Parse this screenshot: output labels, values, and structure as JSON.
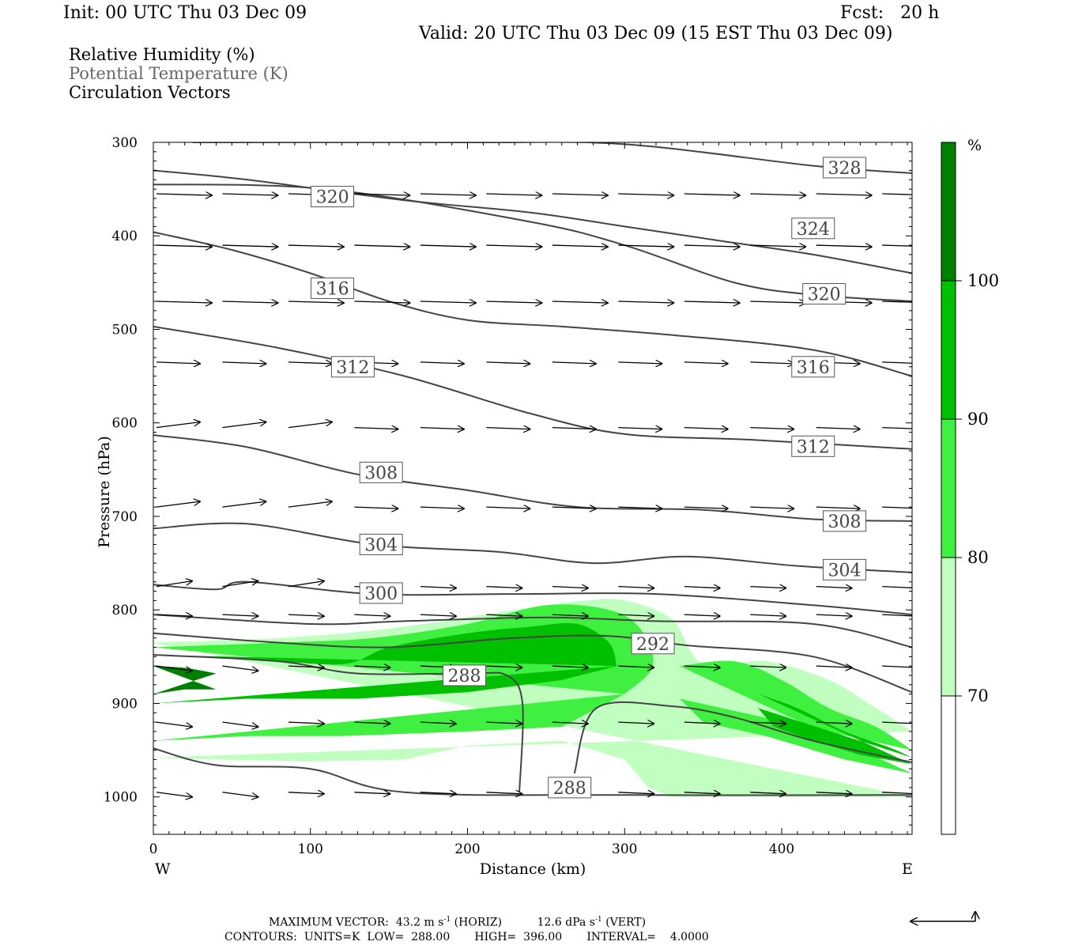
{
  "header": {
    "init": "Init: 00 UTC Thu 03 Dec 09",
    "fcst": "Fcst:   20 h",
    "valid": "Valid: 20 UTC Thu 03 Dec 09 (15 EST Thu 03 Dec 09)"
  },
  "legend": {
    "rh": "Relative Humidity (%)",
    "theta": "Potential Temperature (K)",
    "vectors": "Circulation Vectors"
  },
  "colors": {
    "rh_70_80": "#c0ffc0",
    "rh_80_90": "#40f040",
    "rh_90_100": "#00c000",
    "rh_100": "#008000",
    "contour": "#444444",
    "background": "#ffffff"
  },
  "chart_data": {
    "type": "cross-section",
    "xlabel": "Distance (km)",
    "ylabel": "Pressure (hPa)",
    "xlim": [
      0,
      483
    ],
    "ylim": [
      1040,
      300
    ],
    "x_ticks": [
      0,
      100,
      200,
      300,
      400
    ],
    "y_ticks": [
      300,
      400,
      500,
      600,
      700,
      800,
      900,
      1000
    ],
    "x_end_labels": {
      "west": "W",
      "east": "E"
    },
    "colorbar": {
      "unit": "%",
      "levels": [
        70,
        80,
        90,
        100
      ],
      "colors": [
        "#ffffff",
        "#c0ffc0",
        "#40f040",
        "#00c000",
        "#008000"
      ]
    },
    "theta_contours": [
      {
        "value": 328,
        "points": [
          [
            25,
            300
          ],
          [
            200,
            300
          ],
          [
            300,
            302
          ],
          [
            420,
            325
          ],
          [
            483,
            333
          ]
        ],
        "label": true,
        "label_pos": [
          440,
          327
        ]
      },
      {
        "value": 324,
        "points": [
          [
            0,
            330
          ],
          [
            60,
            340
          ],
          [
            160,
            362
          ],
          [
            240,
            375
          ],
          [
            300,
            390
          ],
          [
            360,
            405
          ],
          [
            420,
            420
          ],
          [
            483,
            440
          ]
        ],
        "label": true,
        "label_pos": [
          420,
          392
        ]
      },
      {
        "value": 320,
        "points": [
          [
            0,
            345
          ],
          [
            110,
            350
          ],
          [
            240,
            385
          ],
          [
            300,
            410
          ],
          [
            370,
            450
          ],
          [
            420,
            463
          ],
          [
            483,
            470
          ]
        ],
        "label": true,
        "label_pos": [
          114,
          358
        ]
      },
      {
        "value": 320,
        "points": [],
        "label": true,
        "label_pos": [
          427,
          462
        ]
      },
      {
        "value": 316,
        "points": [
          [
            0,
            396
          ],
          [
            50,
            415
          ],
          [
            100,
            440
          ],
          [
            150,
            470
          ],
          [
            200,
            490
          ],
          [
            260,
            497
          ],
          [
            330,
            506
          ],
          [
            420,
            522
          ],
          [
            483,
            550
          ]
        ],
        "label": true,
        "label_pos": [
          114,
          456
        ]
      },
      {
        "value": 316,
        "points": [],
        "label": true,
        "label_pos": [
          420,
          540
        ]
      },
      {
        "value": 312,
        "points": [
          [
            0,
            497
          ],
          [
            80,
            520
          ],
          [
            160,
            550
          ],
          [
            240,
            590
          ],
          [
            300,
            612
          ],
          [
            380,
            618
          ],
          [
            483,
            628
          ]
        ],
        "label": true,
        "label_pos": [
          127,
          540
        ]
      },
      {
        "value": 312,
        "points": [],
        "label": true,
        "label_pos": [
          420,
          625
        ]
      },
      {
        "value": 308,
        "points": [
          [
            0,
            613
          ],
          [
            60,
            626
          ],
          [
            130,
            655
          ],
          [
            200,
            672
          ],
          [
            270,
            690
          ],
          [
            350,
            693
          ],
          [
            420,
            703
          ],
          [
            483,
            705
          ]
        ],
        "label": true,
        "label_pos": [
          145,
          653
        ]
      },
      {
        "value": 308,
        "points": [],
        "label": true,
        "label_pos": [
          440,
          705
        ]
      },
      {
        "value": 304,
        "points": [
          [
            0,
            713
          ],
          [
            60,
            708
          ],
          [
            140,
            730
          ],
          [
            220,
            738
          ],
          [
            280,
            750
          ],
          [
            340,
            743
          ],
          [
            410,
            753
          ],
          [
            483,
            760
          ]
        ],
        "label": true,
        "label_pos": [
          145,
          730
        ]
      },
      {
        "value": 304,
        "points": [],
        "label": true,
        "label_pos": [
          440,
          757
        ]
      },
      {
        "value": 300,
        "points": [
          [
            0,
            773
          ],
          [
            40,
            778
          ],
          [
            60,
            770
          ],
          [
            140,
            783
          ],
          [
            230,
            783
          ],
          [
            320,
            783
          ],
          [
            420,
            795
          ],
          [
            483,
            805
          ]
        ],
        "label": true,
        "label_pos": [
          145,
          782
        ]
      },
      {
        "value": 296,
        "points": [
          [
            0,
            805
          ],
          [
            100,
            815
          ],
          [
            160,
            812
          ],
          [
            250,
            808
          ],
          [
            320,
            812
          ],
          [
            420,
            815
          ],
          [
            483,
            840
          ]
        ],
        "label": false
      },
      {
        "value": 292,
        "points": [
          [
            0,
            825
          ],
          [
            80,
            835
          ],
          [
            150,
            840
          ],
          [
            230,
            830
          ],
          [
            290,
            828
          ],
          [
            340,
            838
          ],
          [
            420,
            850
          ],
          [
            483,
            888
          ]
        ],
        "label": true,
        "label_pos": [
          318,
          836
        ]
      },
      {
        "value": 288,
        "points": [
          [
            0,
            848
          ],
          [
            80,
            855
          ],
          [
            130,
            868
          ],
          [
            200,
            868
          ],
          [
            225,
            870
          ],
          [
            235,
            900
          ],
          [
            233,
            995
          ]
        ],
        "label": true,
        "label_pos": [
          198,
          870
        ]
      },
      {
        "value": 288,
        "points": [
          [
            268,
            975
          ],
          [
            282,
            905
          ],
          [
            330,
            903
          ],
          [
            370,
            915
          ],
          [
            420,
            940
          ],
          [
            483,
            963
          ]
        ],
        "label": false
      },
      {
        "value": 288,
        "points": [
          [
            0,
            948
          ],
          [
            40,
            966
          ],
          [
            100,
            970
          ],
          [
            160,
            995
          ],
          [
            300,
            998
          ],
          [
            483,
            998
          ]
        ],
        "label": true,
        "label_pos": [
          265,
          990
        ]
      }
    ],
    "rh_regions": [
      {
        "level": "70-80",
        "note": "moist layer roughly 840-1000 hPa from 0 to 483 km"
      },
      {
        "level": "80-90",
        "note": "layer roughly 845-945 hPa west of 300 km; band 860-970 hPa east of 335 km"
      },
      {
        "level": "90-100",
        "note": "layer roughly 820-900 hPa from 0 to 300 km; band 880-965 hPa east of 385 km"
      },
      {
        "level": ">100",
        "note": "small core near 0-40 km, 860-885 hPa"
      }
    ],
    "vectors": "circulation vectors on a regular grid, mostly west-to-east; maximum horizontal 43.2 m s-1, vertical 12.6 dPa s-1",
    "footer": {
      "max_vector_label": "MAXIMUM VECTOR:",
      "max_vector_horiz": "43.2 m s",
      "horiz_suffix": "(HORIZ)",
      "max_vector_vert": "12.6 dPa s",
      "vert_suffix": "(VERT)",
      "exponent": "-1",
      "contours_label": "CONTOURS:",
      "units": "UNITS=K",
      "low_label": "LOW=",
      "low": "288.00",
      "high_label": "HIGH=",
      "high": "396.00",
      "interval_label": "INTERVAL=",
      "interval": "4.0000"
    }
  }
}
